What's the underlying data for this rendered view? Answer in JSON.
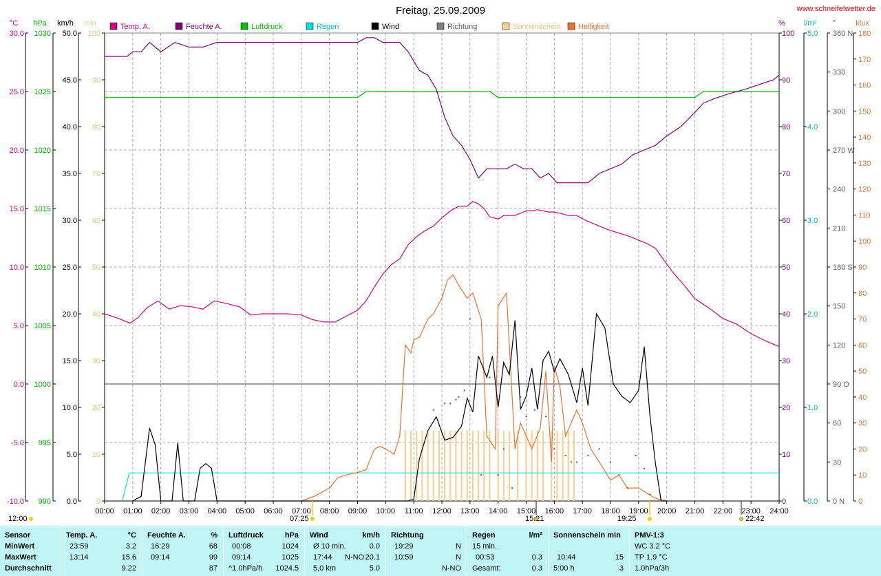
{
  "title": "Freitag, 25.09.2009",
  "website": "www.schneifelwetter.de",
  "colors": {
    "temp": "#d4007f",
    "humidity": "#7f007f",
    "pressure": "#00c000",
    "rain": "#00e0e0",
    "wind": "#000000",
    "direction": "#808080",
    "sunshine": "#f8d090",
    "brightness": "#f07030",
    "background": "#ffffff",
    "stats_background": "#bff5f5"
  },
  "chart_data": {
    "type": "line",
    "title": "Freitag, 25.09.2009",
    "x_range": [
      0,
      24
    ],
    "x_ticks": [
      "00:00",
      "01:00",
      "02:00",
      "03:00",
      "04:00",
      "05:00",
      "06:00",
      "07:00",
      "08:00",
      "09:00",
      "10:00",
      "11:00",
      "12:00",
      "13:00",
      "14:00",
      "15:00",
      "16:00",
      "17:00",
      "18:00",
      "19:00",
      "20:00",
      "21:00",
      "22:00",
      "23:00",
      "24:00"
    ],
    "grid": true,
    "legend": "top",
    "legend_entries": [
      {
        "name": "Temp. A.",
        "color": "#d4007f"
      },
      {
        "name": "Feuchte A.",
        "color": "#7f007f"
      },
      {
        "name": "Luftdruck",
        "color": "#00c000"
      },
      {
        "name": "Regen",
        "color": "#00e0e0"
      },
      {
        "name": "Wind",
        "color": "#000000"
      },
      {
        "name": "Richtung",
        "color": "#808080"
      },
      {
        "name": "Sonnenschein",
        "color": "#f8d090"
      },
      {
        "name": "Helligkeit",
        "color": "#f07030"
      }
    ],
    "axes": {
      "temp": {
        "unit": "°C",
        "range": [
          -10,
          30
        ],
        "ticks": [
          "30.0",
          "25.0",
          "20.0",
          "15.0",
          "10.0",
          "5.0",
          "0.0",
          "-5.0",
          "-10.0"
        ]
      },
      "pressure": {
        "unit": "hPa",
        "range": [
          990,
          1030
        ],
        "ticks": [
          "1030",
          "1025",
          "1020",
          "1015",
          "1010",
          "1005",
          "1000",
          "995",
          "990"
        ]
      },
      "wind": {
        "unit": "km/h",
        "range": [
          0,
          50
        ],
        "ticks": [
          "50.0",
          "45.0",
          "40.0",
          "35.0",
          "30.0",
          "25.0",
          "20.0",
          "15.0",
          "10.0",
          "5.0",
          "0.0"
        ]
      },
      "sunshine": {
        "unit": "min",
        "range": [
          0,
          100
        ],
        "ticks": [
          "100",
          "90",
          "80",
          "70",
          "60",
          "50",
          "40",
          "30",
          "20",
          "10",
          "0"
        ]
      },
      "humidity": {
        "unit": "%",
        "range": [
          0,
          100
        ],
        "ticks": [
          "100",
          "90",
          "80",
          "70",
          "60",
          "50",
          "40",
          "30",
          "20",
          "10",
          "0"
        ]
      },
      "rain": {
        "unit": "l/m²",
        "range": [
          0,
          5
        ],
        "ticks": [
          "5.0",
          "4.0",
          "3.0",
          "2.0",
          "1.0",
          "0.0"
        ]
      },
      "direction": {
        "unit": "°",
        "range": [
          0,
          360
        ],
        "ticks": [
          "360 N",
          "330",
          "300",
          "270 W",
          "240",
          "210",
          "180 S",
          "150",
          "120",
          "90 O",
          "60",
          "30",
          "0 N"
        ]
      },
      "brightness": {
        "unit": "klux",
        "range": [
          0,
          180
        ],
        "ticks": [
          "180",
          "170",
          "160",
          "150",
          "140",
          "130",
          "120",
          "110",
          "100",
          "90",
          "80",
          "70",
          "60",
          "50",
          "40",
          "30",
          "20",
          "10",
          "0"
        ]
      }
    },
    "series": [
      {
        "name": "Temp. A.",
        "axis": "temp",
        "x": [
          0,
          0.5,
          0.9,
          1.2,
          1.5,
          1.9,
          2.3,
          2.7,
          3.1,
          3.5,
          3.9,
          4.3,
          4.8,
          5.2,
          5.6,
          6.0,
          6.5,
          7.0,
          7.4,
          7.8,
          8.2,
          8.6,
          9.0,
          9.3,
          9.6,
          9.9,
          10.2,
          10.5,
          10.8,
          11.1,
          11.4,
          11.7,
          12.0,
          12.3,
          12.6,
          12.9,
          13.1,
          13.3,
          13.5,
          13.7,
          14.0,
          14.2,
          14.4,
          14.6,
          14.8,
          15.0,
          15.2,
          15.4,
          15.6,
          15.8,
          16.0,
          16.2,
          16.5,
          16.8,
          17.1,
          17.5,
          17.9,
          18.3,
          18.7,
          19.0,
          19.3,
          19.6,
          19.9,
          20.2,
          20.6,
          21.0,
          21.5,
          22.0,
          22.5,
          23.0,
          23.5,
          24.0
        ],
        "values": [
          6.0,
          5.6,
          5.2,
          5.7,
          6.5,
          7.1,
          6.4,
          6.7,
          6.6,
          6.4,
          7.1,
          6.9,
          6.6,
          5.9,
          6.0,
          6.0,
          6.0,
          5.9,
          5.5,
          5.3,
          5.3,
          5.8,
          6.3,
          7.1,
          8.3,
          9.4,
          10.2,
          10.7,
          11.9,
          12.6,
          13.1,
          13.5,
          14.2,
          14.8,
          15.2,
          15.2,
          15.6,
          15.4,
          15.0,
          14.3,
          14.1,
          14.4,
          14.4,
          14.4,
          14.6,
          14.8,
          14.8,
          14.9,
          14.8,
          14.7,
          14.7,
          14.6,
          14.4,
          14.4,
          14.0,
          13.6,
          13.2,
          12.9,
          12.6,
          12.3,
          12.0,
          11.6,
          10.6,
          9.6,
          8.5,
          7.3,
          6.5,
          5.6,
          5.1,
          4.3,
          3.7,
          3.2
        ]
      },
      {
        "name": "Feuchte A.",
        "axis": "humidity",
        "x": [
          0,
          0.8,
          1.0,
          1.3,
          1.6,
          2.0,
          2.5,
          3.0,
          3.5,
          4.0,
          5.0,
          6.0,
          7.0,
          8.0,
          9.0,
          9.3,
          9.6,
          9.9,
          10.2,
          10.5,
          10.8,
          11.2,
          11.5,
          11.8,
          12.1,
          12.4,
          12.7,
          13.0,
          13.3,
          13.6,
          14.0,
          14.3,
          14.6,
          14.9,
          15.2,
          15.5,
          15.8,
          16.1,
          16.4,
          16.8,
          17.2,
          17.6,
          18.0,
          18.4,
          18.8,
          19.2,
          19.6,
          20.0,
          20.5,
          21.0,
          21.3,
          21.7,
          22.2,
          22.8,
          23.3,
          23.8,
          24.0
        ],
        "values": [
          95,
          95,
          96,
          96,
          98,
          96,
          98,
          97,
          97,
          98,
          98,
          98,
          98,
          98,
          98,
          99,
          99,
          98,
          98,
          98,
          96,
          92,
          91,
          88,
          82,
          78,
          76,
          73,
          69,
          71,
          71,
          71,
          72,
          71,
          71,
          69,
          70,
          68,
          68,
          68,
          68,
          70,
          71,
          72,
          74,
          75,
          76,
          78,
          80,
          83,
          85,
          86,
          87,
          88,
          89,
          90,
          91
        ]
      },
      {
        "name": "Luftdruck",
        "axis": "pressure",
        "x": [
          0,
          9.0,
          9.3,
          13.7,
          14.0,
          21.0,
          21.3,
          24.0
        ],
        "values": [
          1024.5,
          1024.5,
          1025,
          1025,
          1024.5,
          1024.5,
          1025,
          1025
        ]
      },
      {
        "name": "Regen",
        "axis": "rain",
        "x": [
          0.63,
          0.88,
          0.9,
          24.0
        ],
        "values": [
          0,
          0.3,
          0.3,
          0.3
        ]
      },
      {
        "name": "Wind",
        "axis": "wind",
        "x": [
          1.0,
          1.3,
          1.6,
          1.8,
          2.0,
          2.2,
          2.4,
          2.6,
          2.8,
          3.0,
          3.2,
          3.4,
          3.6,
          3.8,
          4.0,
          4.1,
          4.2,
          10.5,
          10.8,
          11.0,
          11.2,
          11.5,
          11.8,
          12.1,
          12.4,
          12.7,
          12.9,
          13.1,
          13.3,
          13.6,
          13.8,
          14.0,
          14.2,
          14.4,
          14.6,
          14.8,
          15.0,
          15.2,
          15.4,
          15.6,
          15.8,
          16.0,
          16.2,
          16.5,
          16.8,
          17.0,
          17.2,
          17.5,
          17.8,
          18.1,
          18.4,
          18.7,
          19.0,
          19.2,
          19.4,
          19.6,
          19.8,
          20.0
        ],
        "values": [
          0,
          0.5,
          7.8,
          6,
          0,
          0,
          0,
          6.2,
          0,
          0,
          0,
          3.5,
          4,
          3.5,
          0,
          0,
          0,
          0,
          0,
          0.2,
          4.5,
          7.5,
          9,
          6.5,
          6.8,
          8,
          11,
          9.5,
          15.5,
          13.2,
          15.5,
          10,
          14.8,
          13.5,
          19.3,
          9.8,
          11.2,
          14.2,
          9.8,
          15,
          16,
          13.8,
          15.2,
          13.5,
          10.5,
          14.2,
          10.2,
          20,
          18.5,
          12.5,
          11.2,
          10.5,
          11.8,
          16.5,
          9.2,
          4,
          0,
          0
        ]
      },
      {
        "name": "Richtung",
        "axis": "direction",
        "x": [
          11.7,
          12.1,
          12.3,
          12.5,
          12.6,
          12.8,
          13.0,
          13.4,
          13.7,
          14.0,
          14.2,
          14.5,
          14.8,
          15.0,
          15.3,
          15.7,
          16.0,
          16.4,
          16.6,
          16.8,
          17.2,
          17.6,
          18.0,
          18.3,
          18.6,
          18.9,
          19.2,
          19.4
        ],
        "values": [
          70,
          75,
          75,
          78,
          80,
          85,
          140,
          20,
          95,
          20,
          40,
          10,
          80,
          65,
          70,
          65,
          40,
          35,
          30,
          30,
          35,
          40,
          30,
          20,
          10,
          35,
          25,
          5
        ]
      },
      {
        "name": "Helligkeit",
        "axis": "brightness",
        "x": [
          7.0,
          7.5,
          8.0,
          8.3,
          8.6,
          9.0,
          9.3,
          9.6,
          9.8,
          10.0,
          10.3,
          10.5,
          10.7,
          10.9,
          11.0,
          11.2,
          11.5,
          11.7,
          12.0,
          12.2,
          12.4,
          12.6,
          12.9,
          13.1,
          13.4,
          13.6,
          13.9,
          14.0,
          14.3,
          14.6,
          14.8,
          15.0,
          15.2,
          15.5,
          15.7,
          15.9,
          16.0,
          16.2,
          16.4,
          16.6,
          16.8,
          17.0,
          17.3,
          17.6,
          18.0,
          18.3,
          18.6,
          19.0,
          19.3,
          19.6,
          20.0
        ],
        "values": [
          0,
          2,
          5,
          9,
          10,
          11,
          12,
          20,
          21,
          20,
          18,
          25,
          60,
          57,
          62,
          63,
          70,
          72,
          78,
          85,
          87,
          83,
          78,
          80,
          70,
          25,
          20,
          75,
          80,
          20,
          30,
          25,
          20,
          28,
          50,
          15,
          52,
          44,
          25,
          30,
          35,
          30,
          20,
          15,
          8,
          10,
          5,
          5,
          3,
          1,
          0
        ]
      },
      {
        "name": "Sonnenschein",
        "axis": "sunshine",
        "type": "bars",
        "x": [
          10.7,
          10.9,
          11.1,
          11.3,
          11.5,
          11.7,
          11.9,
          12.1,
          12.3,
          12.5,
          12.7,
          12.9,
          13.1,
          13.3,
          13.5,
          13.7,
          14.0,
          14.2,
          14.4,
          14.7,
          15.0,
          15.2,
          15.4,
          15.6,
          15.9,
          16.1,
          16.3,
          16.5,
          16.7
        ],
        "values": [
          15,
          15,
          15,
          15,
          15,
          15,
          15,
          15,
          15,
          15,
          15,
          15,
          15,
          15,
          15,
          15,
          15,
          15,
          15,
          15,
          15,
          15,
          15,
          15,
          15,
          15,
          15,
          15,
          15
        ]
      }
    ],
    "annotations": [
      "12:00",
      "07:25",
      "15:21",
      "19:25",
      "22:42"
    ]
  },
  "stats": {
    "rows": [
      "Sensor",
      "MinWert",
      "MaxWert",
      "Durchschnitt"
    ],
    "temp": {
      "label": "Temp. A.",
      "unit": "°C",
      "min_time": "23:59",
      "min_val": "3.2",
      "max_time": "13:14",
      "max_val": "15.6",
      "avg": "9.22"
    },
    "humidity": {
      "label": "Feuchte A.",
      "unit": "%",
      "min_time": "16:29",
      "min_val": "68",
      "max_time": "09:14",
      "max_val": "99",
      "avg": "87"
    },
    "pressure": {
      "label": "Luftdruck",
      "unit": "hPa",
      "min_time": "00:08",
      "min_val": "1024",
      "max_time": "09:14",
      "max_val": "1025",
      "avg_label": "^1.0hPa/h",
      "avg": "1024.5"
    },
    "wind": {
      "label": "Wind",
      "unit": "km/h",
      "min_label": "Ø 10 min.",
      "min_val": "0.0",
      "max_time": "17:44",
      "max_dir": "N-NO",
      "max_val": "20.1",
      "avg_label": "5,0 km",
      "avg": "5.0"
    },
    "direction": {
      "label": "Richtung",
      "min_time": "19:29",
      "min_val": "N",
      "max_time": "10:59",
      "max_val": "N",
      "avg": "N-NO"
    },
    "rain": {
      "label": "Regen",
      "unit": "l/m²",
      "min_label": "15 min.",
      "max_time": "00:53",
      "max_val": "0.3",
      "avg_label": "Gesamt:",
      "avg": "0.3"
    },
    "sunshine": {
      "label": "Sonnenschein min",
      "max_time": "10:44",
      "max_val": "15",
      "avg_label": "5:00 h",
      "avg": "3"
    },
    "pmv": {
      "label": "PMV-1:3",
      "min_val": "WC 3.2 °C",
      "max_val": "TP 1.9 °C",
      "avg": "1.0hPa/3h"
    }
  }
}
